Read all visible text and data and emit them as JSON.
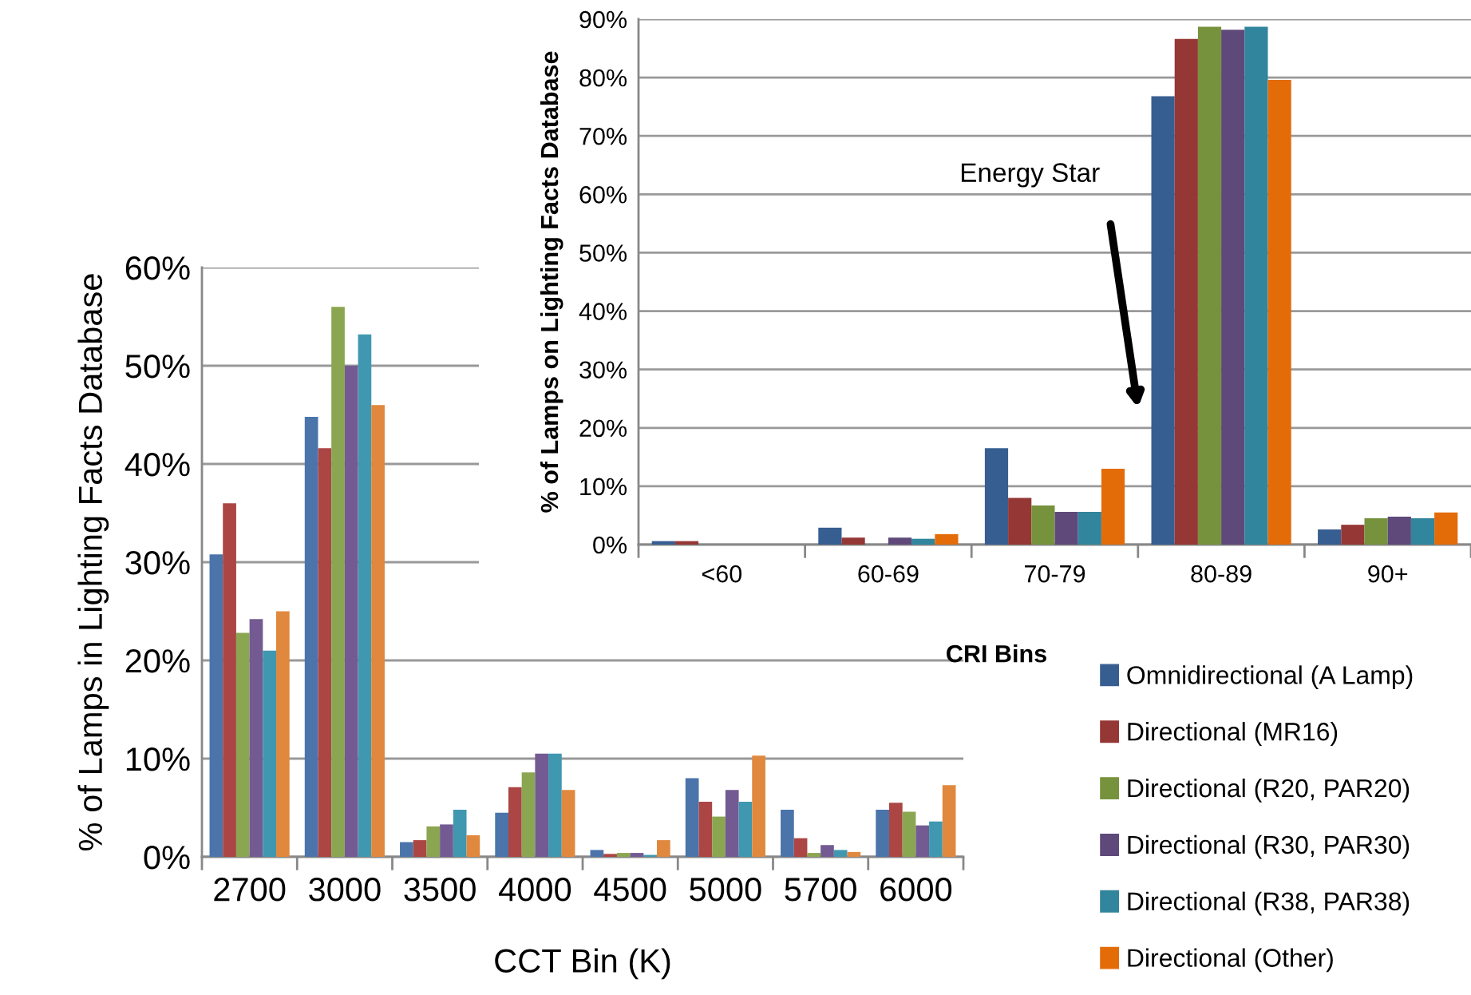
{
  "chart_data": [
    {
      "type": "bar",
      "xlabel": "CCT Bin (K)",
      "ylabel": "% of Lamps in Lighting Facts Database",
      "categories": [
        "2700",
        "3000",
        "3500",
        "4000",
        "4500",
        "5000",
        "5700",
        "6000"
      ],
      "series": [
        {
          "color": "#4a74aa",
          "values": [
            30.8,
            44.8,
            1.5,
            4.5,
            0.7,
            8.0,
            4.8,
            4.8
          ]
        },
        {
          "color": "#ab4644",
          "values": [
            36,
            41.6,
            1.7,
            7.1,
            0.3,
            5.6,
            1.9,
            5.5
          ]
        },
        {
          "color": "#8ba650",
          "values": [
            22.8,
            56,
            3.1,
            8.6,
            0.4,
            4.1,
            0.4,
            4.6
          ]
        },
        {
          "color": "#735a92",
          "values": [
            24.2,
            50,
            3.3,
            10.5,
            0.4,
            6.8,
            1.2,
            3.2
          ]
        },
        {
          "color": "#4098b0",
          "values": [
            21,
            53.2,
            4.8,
            10.5,
            0.2,
            5.6,
            0.7,
            3.6
          ]
        },
        {
          "color": "#e0883e",
          "values": [
            25,
            46,
            2.2,
            6.8,
            1.7,
            10.3,
            0.5,
            7.3
          ]
        }
      ],
      "ylim": [
        0,
        60
      ],
      "yticks": [
        {
          "value": 0,
          "label": "0%"
        },
        {
          "value": 10,
          "label": "10%"
        },
        {
          "value": 20,
          "label": "20%"
        },
        {
          "value": 30,
          "label": "30%"
        },
        {
          "value": 40,
          "label": "40%"
        },
        {
          "value": 50,
          "label": "50%"
        },
        {
          "value": 60,
          "label": "60%"
        }
      ],
      "grid": "y",
      "legend": false
    },
    {
      "type": "bar",
      "xlabel": "CRI Bins",
      "ylabel": "% of Lamps on Lighting Facts Database",
      "categories": [
        "<60",
        "60-69",
        "70-79",
        "80-89",
        "90+"
      ],
      "series": [
        {
          "name": "Omnidirectional (A Lamp)",
          "color": "#365e91",
          "values": [
            0.6,
            2.9,
            16.5,
            76.8,
            2.6
          ]
        },
        {
          "name": "Directional (MR16)",
          "color": "#953735",
          "values": [
            0.6,
            1.2,
            8.0,
            86.6,
            3.4
          ]
        },
        {
          "name": "Directional (R20, PAR20)",
          "color": "#76923c",
          "values": [
            0,
            0,
            6.7,
            88.7,
            4.5
          ]
        },
        {
          "name": "Directional (R30, PAR30)",
          "color": "#5f497a",
          "values": [
            0,
            1.2,
            5.6,
            88.2,
            4.8
          ]
        },
        {
          "name": "Directional (R38, PAR38)",
          "color": "#31859c",
          "values": [
            0,
            1.0,
            5.6,
            88.7,
            4.5
          ]
        },
        {
          "name": "Directional (Other)",
          "color": "#e36c09",
          "values": [
            0,
            1.8,
            13.0,
            79.6,
            5.5
          ]
        }
      ],
      "ylim": [
        0,
        90
      ],
      "yticks": [
        {
          "value": 0,
          "label": "0%"
        },
        {
          "value": 10,
          "label": "10%"
        },
        {
          "value": 20,
          "label": "20%"
        },
        {
          "value": 30,
          "label": "30%"
        },
        {
          "value": 40,
          "label": "40%"
        },
        {
          "value": 50,
          "label": "50%"
        },
        {
          "value": 60,
          "label": "60%"
        },
        {
          "value": 70,
          "label": "70%"
        },
        {
          "value": 80,
          "label": "80%"
        },
        {
          "value": 90,
          "label": "90%"
        }
      ],
      "annotations": [
        "Energy Star"
      ],
      "grid": "y",
      "legend": "bottom right"
    }
  ]
}
